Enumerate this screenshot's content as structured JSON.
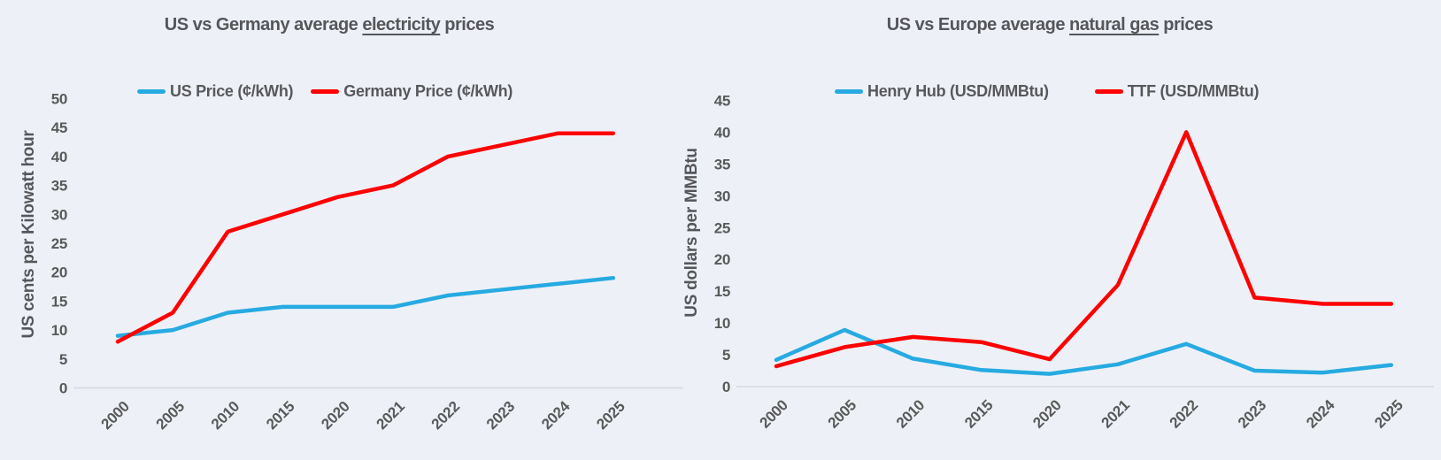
{
  "colors": {
    "background": "#edf1f7",
    "text": "#595959",
    "axis_line": "#d6dae0",
    "blue_series": "#27aae1",
    "red_series": "#ff0000"
  },
  "chart_data": [
    {
      "type": "line",
      "title": {
        "prefix": "US vs Germany average ",
        "underlined": "electricity",
        "suffix": " prices"
      },
      "ylabel": "US cents per Kilowatt hour",
      "xlabel": "",
      "categories": [
        "2000",
        "2005",
        "2010",
        "2015",
        "2020",
        "2021",
        "2022",
        "2023",
        "2024",
        "2025"
      ],
      "ylim": [
        0,
        50
      ],
      "ytick_step": 5,
      "grid": false,
      "legend_position": "top",
      "series": [
        {
          "name": "US Price (¢/kWh)",
          "color": "#27aae1",
          "values": [
            9,
            10,
            13,
            14,
            14,
            14,
            16,
            17,
            18,
            19
          ]
        },
        {
          "name": "Germany Price (¢/kWh)",
          "color": "#ff0000",
          "values": [
            8,
            13,
            27,
            30,
            33,
            35,
            40,
            42,
            44,
            44
          ]
        }
      ]
    },
    {
      "type": "line",
      "title": {
        "prefix": "US vs Europe average ",
        "underlined": "natural gas",
        "suffix": " prices"
      },
      "ylabel": "US dollars per MMBtu",
      "xlabel": "",
      "categories": [
        "2000",
        "2005",
        "2010",
        "2015",
        "2020",
        "2021",
        "2022",
        "2023",
        "2024",
        "2025"
      ],
      "ylim": [
        0,
        45
      ],
      "ytick_step": 5,
      "grid": false,
      "legend_position": "top",
      "series": [
        {
          "name": "Henry Hub (USD/MMBtu)",
          "color": "#27aae1",
          "values": [
            4.2,
            8.9,
            4.4,
            2.6,
            2.0,
            3.5,
            6.7,
            2.5,
            2.2,
            3.4
          ]
        },
        {
          "name": "TTF (USD/MMBtu)",
          "color": "#ff0000",
          "values": [
            3.2,
            6.2,
            7.8,
            7.0,
            4.3,
            16,
            40,
            14,
            13,
            13
          ]
        }
      ]
    }
  ]
}
